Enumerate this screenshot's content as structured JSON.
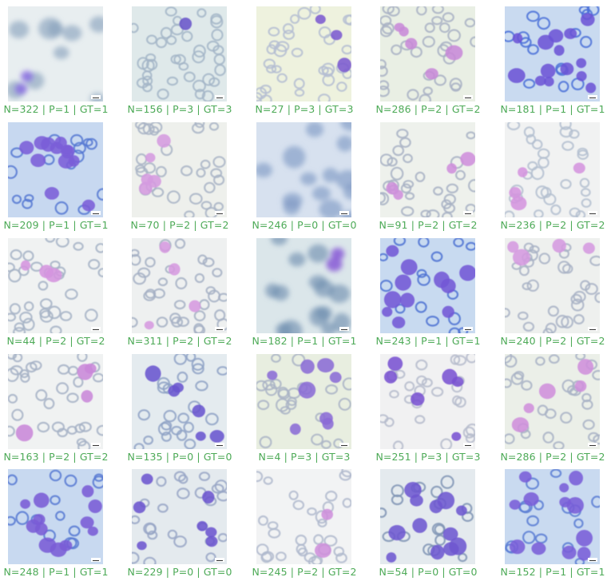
{
  "figure": {
    "caption_color": "#4daa57",
    "tiles": [
      {
        "caption": "N=322 | P=1 | GT=1",
        "bg": "#e8eef0",
        "rbc": "#8aa2bd",
        "blast": "#8a6fe0",
        "blast_count": 2,
        "rbc_count": 9,
        "blur": true,
        "scale_bar": true
      },
      {
        "caption": "N=156 | P=3 | GT=3",
        "bg": "#dfe9ea",
        "rbc": "#a5b6c8",
        "blast": "#6a55c9",
        "blast_count": 1,
        "rbc_count": 38,
        "blur": false,
        "scale_bar": true
      },
      {
        "caption": "N=27 | P=3 | GT=3",
        "bg": "#eef2de",
        "rbc": "#b5bed2",
        "blast": "#7c5bd0",
        "blast_count": 3,
        "rbc_count": 34,
        "blur": false,
        "scale_bar": false
      },
      {
        "caption": "N=286 | P=2 | GT=2",
        "bg": "#e9efe4",
        "rbc": "#a9b2c4",
        "blast": "#c88ad8",
        "blast_count": 5,
        "rbc_count": 32,
        "blur": false,
        "scale_bar": true
      },
      {
        "caption": "N=181 | P=1 | GT=1",
        "bg": "#c9daf0",
        "rbc": "#4a70d8",
        "blast": "#6c54d6",
        "blast_count": 14,
        "rbc_count": 16,
        "blur": false,
        "scale_bar": true
      },
      {
        "caption": "N=209 | P=1 | GT=1",
        "bg": "#c7d8f0",
        "rbc": "#5578d2",
        "blast": "#7b5ed8",
        "blast_count": 12,
        "rbc_count": 16,
        "blur": false,
        "scale_bar": true
      },
      {
        "caption": "N=70 | P=2 | GT=2",
        "bg": "#eef0ec",
        "rbc": "#a9b4c6",
        "blast": "#d59be0",
        "blast_count": 5,
        "rbc_count": 30,
        "blur": false,
        "scale_bar": true
      },
      {
        "caption": "N=246 | P=0 | GT=0",
        "bg": "#d7e1ef",
        "rbc": "#7f9ac4",
        "blast": "#6656c2",
        "blast_count": 0,
        "rbc_count": 14,
        "blur": true,
        "scale_bar": true
      },
      {
        "caption": "N=91 | P=2 | GT=2",
        "bg": "#eef1ec",
        "rbc": "#a8b2c4",
        "blast": "#cf8fdc",
        "blast_count": 4,
        "rbc_count": 30,
        "blur": false,
        "scale_bar": true
      },
      {
        "caption": "N=236 | P=2 | GT=2",
        "bg": "#f1f2f2",
        "rbc": "#b4bfd0",
        "blast": "#d595df",
        "blast_count": 4,
        "rbc_count": 30,
        "blur": false,
        "scale_bar": true
      },
      {
        "caption": "N=44 | P=2 | GT=2",
        "bg": "#f0f2f2",
        "rbc": "#a6b3c6",
        "blast": "#d595df",
        "blast_count": 3,
        "rbc_count": 32,
        "blur": false,
        "scale_bar": true
      },
      {
        "caption": "N=311 | P=2 | GT=2",
        "bg": "#eef0f0",
        "rbc": "#a6b0c4",
        "blast": "#d69ae0",
        "blast_count": 4,
        "rbc_count": 32,
        "blur": false,
        "scale_bar": true
      },
      {
        "caption": "N=182 | P=1 | GT=1",
        "bg": "#dbe6ea",
        "rbc": "#6f8eaf",
        "blast": "#8a5fd6",
        "blast_count": 2,
        "rbc_count": 14,
        "blur": true,
        "scale_bar": true
      },
      {
        "caption": "N=243 | P=1 | GT=1",
        "bg": "#c8daf0",
        "rbc": "#4d72d2",
        "blast": "#7358d6",
        "blast_count": 11,
        "rbc_count": 16,
        "blur": false,
        "scale_bar": true
      },
      {
        "caption": "N=240 | P=2 | GT=2",
        "bg": "#eef0ee",
        "rbc": "#a9b3c5",
        "blast": "#d59ae0",
        "blast_count": 4,
        "rbc_count": 30,
        "blur": false,
        "scale_bar": true
      },
      {
        "caption": "N=163 | P=2 | GT=2",
        "bg": "#f0f2f2",
        "rbc": "#a6b2c6",
        "blast": "#c987da",
        "blast_count": 4,
        "rbc_count": 30,
        "blur": false,
        "scale_bar": true
      },
      {
        "caption": "N=135 | P=0 | GT=0",
        "bg": "#e4ebef",
        "rbc": "#8fa2c6",
        "blast": "#6a55cf",
        "blast_count": 6,
        "rbc_count": 24,
        "blur": false,
        "scale_bar": true
      },
      {
        "caption": "N=4 | P=3 | GT=3",
        "bg": "#e8eee0",
        "rbc": "#aab4c6",
        "blast": "#8b6cd6",
        "blast_count": 8,
        "rbc_count": 24,
        "blur": false,
        "scale_bar": true
      },
      {
        "caption": "N=251 | P=3 | GT=3",
        "bg": "#f1f1f2",
        "rbc": "#b6bccc",
        "blast": "#7a52d2",
        "blast_count": 6,
        "rbc_count": 26,
        "blur": false,
        "scale_bar": true
      },
      {
        "caption": "N=286 | P=2 | GT=2",
        "bg": "#ebefe8",
        "rbc": "#a9b3c5",
        "blast": "#cf8fdc",
        "blast_count": 5,
        "rbc_count": 28,
        "blur": false,
        "scale_bar": true
      },
      {
        "caption": "N=248 | P=1 | GT=1",
        "bg": "#c8d9f0",
        "rbc": "#5678d2",
        "blast": "#7a5cd6",
        "blast_count": 12,
        "rbc_count": 14,
        "blur": false,
        "scale_bar": true
      },
      {
        "caption": "N=229 | P=0 | GT=0",
        "bg": "#e4eaee",
        "rbc": "#98a6c6",
        "blast": "#6c55cf",
        "blast_count": 7,
        "rbc_count": 24,
        "blur": false,
        "scale_bar": true
      },
      {
        "caption": "N=245 | P=2 | GT=2",
        "bg": "#f2f3f4",
        "rbc": "#b0bace",
        "blast": "#cf8fdc",
        "blast_count": 2,
        "rbc_count": 30,
        "blur": false,
        "scale_bar": false
      },
      {
        "caption": "N=54 | P=0 | GT=0",
        "bg": "#e4eaee",
        "rbc": "#7f94b4",
        "blast": "#6e58d0",
        "blast_count": 12,
        "rbc_count": 18,
        "blur": false,
        "scale_bar": false
      },
      {
        "caption": "N=152 | P=1 | GT=1",
        "bg": "#c9daf0",
        "rbc": "#5a7cd4",
        "blast": "#7a5dd8",
        "blast_count": 12,
        "rbc_count": 16,
        "blur": false,
        "scale_bar": true
      }
    ]
  }
}
